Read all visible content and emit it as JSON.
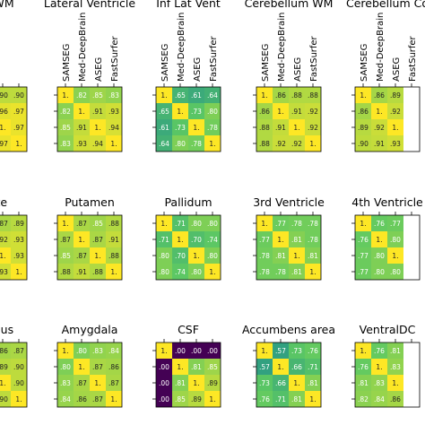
{
  "chart_data": {
    "type": "heatmap",
    "grid": "3 rows x 5 panels, each a 4x4 correlation matrix; figure is cropped on all sides",
    "methods": [
      "SAMSEG",
      "Med-DeepBrain",
      "ASEG",
      "FastSurfer"
    ],
    "colormap": [
      "#440154",
      "#3b528b",
      "#21918c",
      "#5ec962",
      "#fde725"
    ],
    "panels": [
      {
        "title": "ral WM",
        "show_col_labels": false,
        "values": [
          [
            null,
            null,
            0.9,
            0.9
          ],
          [
            null,
            null,
            0.96,
            0.97
          ],
          [
            null,
            null,
            1.0,
            0.97
          ],
          [
            null,
            null,
            0.97,
            1.0
          ]
        ],
        "cells": [
          [
            "",
            "",
            ".90",
            ".90"
          ],
          [
            "",
            "",
            ".96",
            ".97"
          ],
          [
            "",
            "",
            "1.",
            ".97"
          ],
          [
            "",
            "",
            ".97",
            "1."
          ]
        ]
      },
      {
        "title": "Lateral Ventricle",
        "show_col_labels": true,
        "values": [
          [
            1.0,
            0.82,
            0.85,
            0.83
          ],
          [
            0.82,
            1.0,
            0.91,
            0.93
          ],
          [
            0.85,
            0.91,
            1.0,
            0.94
          ],
          [
            0.83,
            0.93,
            0.94,
            1.0
          ]
        ],
        "cells": [
          [
            "1.",
            ".82",
            ".85",
            ".83"
          ],
          [
            ".82",
            "1.",
            ".91",
            ".93"
          ],
          [
            ".85",
            ".91",
            "1.",
            ".94"
          ],
          [
            ".83",
            ".93",
            ".94",
            "1."
          ]
        ]
      },
      {
        "title": "Inf Lat Vent",
        "show_col_labels": true,
        "values": [
          [
            1.0,
            0.65,
            0.61,
            0.64
          ],
          [
            0.65,
            1.0,
            0.73,
            0.8
          ],
          [
            0.61,
            0.73,
            1.0,
            0.78
          ],
          [
            0.64,
            0.8,
            0.78,
            1.0
          ]
        ],
        "cells": [
          [
            "1.",
            ".65",
            ".61",
            ".64"
          ],
          [
            ".65",
            "1.",
            ".73",
            ".80"
          ],
          [
            ".61",
            ".73",
            "1.",
            ".78"
          ],
          [
            ".64",
            ".80",
            ".78",
            "1."
          ]
        ]
      },
      {
        "title": "Cerebellum WM",
        "show_col_labels": true,
        "values": [
          [
            1.0,
            0.86,
            0.88,
            0.88
          ],
          [
            0.86,
            1.0,
            0.91,
            0.92
          ],
          [
            0.88,
            0.91,
            1.0,
            0.92
          ],
          [
            0.88,
            0.92,
            0.92,
            1.0
          ]
        ],
        "cells": [
          [
            "1.",
            ".86",
            ".88",
            ".88"
          ],
          [
            ".86",
            "1.",
            ".91",
            ".92"
          ],
          [
            ".88",
            ".91",
            "1.",
            ".92"
          ],
          [
            ".88",
            ".92",
            ".92",
            "1."
          ]
        ]
      },
      {
        "title": "Cerebellum Co",
        "show_col_labels": true,
        "values": [
          [
            1.0,
            0.86,
            0.89,
            null
          ],
          [
            0.86,
            1.0,
            0.92,
            null
          ],
          [
            0.89,
            0.92,
            1.0,
            null
          ],
          [
            0.9,
            0.91,
            0.93,
            null
          ]
        ],
        "cells": [
          [
            "1.",
            ".86",
            ".89",
            ""
          ],
          [
            ".86",
            "1.",
            ".92",
            ""
          ],
          [
            ".89",
            ".92",
            "1.",
            ""
          ],
          [
            ".90",
            ".91",
            ".93",
            ""
          ]
        ]
      },
      {
        "title": "date",
        "show_col_labels": false,
        "values": [
          [
            null,
            null,
            0.87,
            0.89
          ],
          [
            null,
            null,
            0.92,
            0.93
          ],
          [
            null,
            null,
            1.0,
            0.93
          ],
          [
            null,
            null,
            0.93,
            1.0
          ]
        ],
        "cells": [
          [
            "",
            "",
            ".87",
            ".89"
          ],
          [
            "",
            "",
            ".92",
            ".93"
          ],
          [
            "",
            "",
            "1.",
            ".93"
          ],
          [
            "",
            "",
            ".93",
            "1."
          ]
        ]
      },
      {
        "title": "Putamen",
        "show_col_labels": false,
        "values": [
          [
            1.0,
            0.87,
            0.85,
            0.88
          ],
          [
            0.87,
            1.0,
            0.87,
            0.91
          ],
          [
            0.85,
            0.87,
            1.0,
            0.88
          ],
          [
            0.88,
            0.91,
            0.88,
            1.0
          ]
        ],
        "cells": [
          [
            "1.",
            ".87",
            ".85",
            ".88"
          ],
          [
            ".87",
            "1.",
            ".87",
            ".91"
          ],
          [
            ".85",
            ".87",
            "1.",
            ".88"
          ],
          [
            ".88",
            ".91",
            ".88",
            "1."
          ]
        ]
      },
      {
        "title": "Pallidum",
        "show_col_labels": false,
        "values": [
          [
            1.0,
            0.71,
            0.8,
            0.8
          ],
          [
            0.71,
            1.0,
            0.7,
            0.74
          ],
          [
            0.8,
            0.7,
            1.0,
            0.8
          ],
          [
            0.8,
            0.74,
            0.8,
            1.0
          ]
        ],
        "cells": [
          [
            "1.",
            ".71",
            ".80",
            ".80"
          ],
          [
            ".71",
            "1.",
            ".70",
            ".74"
          ],
          [
            ".80",
            ".70",
            "1.",
            ".80"
          ],
          [
            ".80",
            ".74",
            ".80",
            "1."
          ]
        ]
      },
      {
        "title": "3rd Ventricle",
        "show_col_labels": false,
        "values": [
          [
            1.0,
            0.77,
            0.78,
            0.78
          ],
          [
            0.77,
            1.0,
            0.81,
            0.78
          ],
          [
            0.78,
            0.81,
            1.0,
            0.81
          ],
          [
            0.78,
            0.78,
            0.81,
            1.0
          ]
        ],
        "cells": [
          [
            "1.",
            ".77",
            ".78",
            ".78"
          ],
          [
            ".77",
            "1.",
            ".81",
            ".78"
          ],
          [
            ".78",
            ".81",
            "1.",
            ".81"
          ],
          [
            ".78",
            ".78",
            ".81",
            "1."
          ]
        ]
      },
      {
        "title": "4th Ventricle",
        "show_col_labels": false,
        "values": [
          [
            1.0,
            0.76,
            0.77,
            null
          ],
          [
            0.76,
            1.0,
            0.8,
            null
          ],
          [
            0.77,
            0.8,
            1.0,
            null
          ],
          [
            0.77,
            0.8,
            0.8,
            null
          ]
        ],
        "cells": [
          [
            "1.",
            ".76",
            ".77",
            ""
          ],
          [
            ".76",
            "1.",
            ".80",
            ""
          ],
          [
            ".77",
            ".80",
            "1.",
            ""
          ],
          [
            ".77",
            ".80",
            ".80",
            ""
          ]
        ]
      },
      {
        "title": "ampus",
        "show_col_labels": false,
        "values": [
          [
            null,
            null,
            0.86,
            0.87
          ],
          [
            null,
            null,
            0.89,
            0.9
          ],
          [
            null,
            null,
            1.0,
            0.9
          ],
          [
            null,
            null,
            0.9,
            1.0
          ]
        ],
        "cells": [
          [
            "",
            "",
            ".86",
            ".87"
          ],
          [
            "",
            "",
            ".89",
            ".90"
          ],
          [
            "",
            "",
            "1.",
            ".90"
          ],
          [
            "",
            "",
            ".90",
            "1."
          ]
        ]
      },
      {
        "title": "Amygdala",
        "show_col_labels": false,
        "values": [
          [
            1.0,
            0.8,
            0.83,
            0.84
          ],
          [
            0.8,
            1.0,
            0.87,
            0.86
          ],
          [
            0.83,
            0.87,
            1.0,
            0.87
          ],
          [
            0.84,
            0.86,
            0.87,
            1.0
          ]
        ],
        "cells": [
          [
            "1.",
            ".80",
            ".83",
            ".84"
          ],
          [
            ".80",
            "1.",
            ".87",
            ".86"
          ],
          [
            ".83",
            ".87",
            "1.",
            ".87"
          ],
          [
            ".84",
            ".86",
            ".87",
            "1."
          ]
        ]
      },
      {
        "title": "CSF",
        "show_col_labels": false,
        "values": [
          [
            1.0,
            0.0,
            0.0,
            0.0
          ],
          [
            0.0,
            1.0,
            0.81,
            0.85
          ],
          [
            0.0,
            0.81,
            1.0,
            0.89
          ],
          [
            0.0,
            0.85,
            0.89,
            1.0
          ]
        ],
        "cells": [
          [
            "1.",
            ".00",
            ".00",
            ".00"
          ],
          [
            ".00",
            "1.",
            ".81",
            ".85"
          ],
          [
            ".00",
            ".81",
            "1.",
            ".89"
          ],
          [
            ".00",
            ".85",
            ".89",
            "1."
          ]
        ]
      },
      {
        "title": "Accumbens area",
        "show_col_labels": false,
        "values": [
          [
            1.0,
            0.57,
            0.73,
            0.76
          ],
          [
            0.57,
            1.0,
            0.66,
            0.71
          ],
          [
            0.73,
            0.66,
            1.0,
            0.81
          ],
          [
            0.76,
            0.71,
            0.81,
            1.0
          ]
        ],
        "cells": [
          [
            "1.",
            ".57",
            ".73",
            ".76"
          ],
          [
            ".57",
            "1.",
            ".66",
            ".71"
          ],
          [
            ".73",
            ".66",
            "1.",
            ".81"
          ],
          [
            ".76",
            ".71",
            ".81",
            "1."
          ]
        ]
      },
      {
        "title": "VentralDC",
        "show_col_labels": false,
        "values": [
          [
            1.0,
            0.76,
            0.81,
            null
          ],
          [
            0.76,
            1.0,
            0.83,
            null
          ],
          [
            0.81,
            0.83,
            1.0,
            null
          ],
          [
            0.82,
            0.84,
            0.86,
            null
          ]
        ],
        "cells": [
          [
            "1.",
            ".76",
            ".81",
            ""
          ],
          [
            ".76",
            "1.",
            ".83",
            ""
          ],
          [
            ".81",
            ".83",
            "1.",
            ""
          ],
          [
            ".82",
            ".84",
            ".86",
            ""
          ]
        ]
      }
    ]
  }
}
